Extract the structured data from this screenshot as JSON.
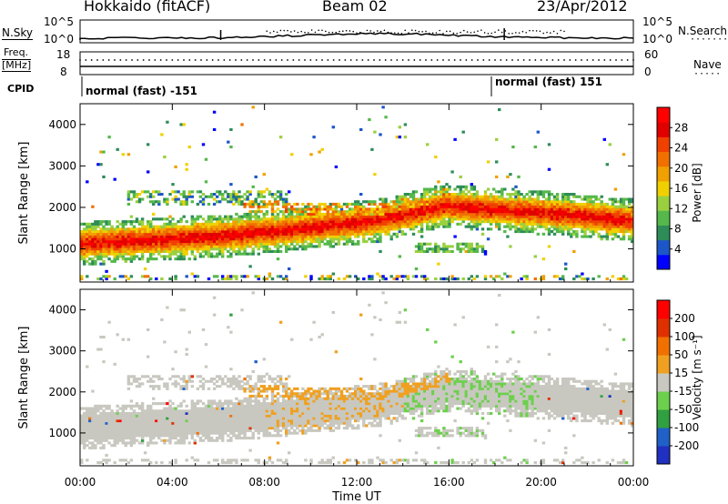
{
  "header": {
    "site": "Hokkaido (fitACF)",
    "beam": "Beam 02",
    "date": "23/Apr/2012"
  },
  "top_panels": {
    "nsky_label": "N.Sky",
    "nsky_ticks": [
      "10^5",
      "10^0"
    ],
    "nsearch_label": "N.Search",
    "nsearch_ticks": [
      "10^5",
      "10^0"
    ],
    "freq_label_1": "Freq.",
    "freq_label_2": "[MHz]",
    "freq_ticks": [
      "18",
      "8"
    ],
    "nave_label": "Nave",
    "nave_ticks": [
      "60",
      "0"
    ],
    "cpid_label": "CPID",
    "cpid_segments": [
      {
        "text": "normal (fast) -151",
        "start_hour": 0
      },
      {
        "text": "normal (fast) 151",
        "start_hour": 18
      }
    ]
  },
  "chart_data": [
    {
      "type": "heatmap",
      "title": "",
      "xlabel": "",
      "ylabel": "Slant Range [km]",
      "xlim": [
        0,
        24
      ],
      "ylim": [
        200,
        4500
      ],
      "yticks": [
        1000,
        2000,
        3000,
        4000
      ],
      "colorbar": {
        "label": "Power [dB]",
        "ticks": [
          "4",
          "8",
          "12",
          "16",
          "20",
          "24",
          "28"
        ],
        "colors": [
          "#0000ff",
          "#1c56c8",
          "#2e8c58",
          "#55b84a",
          "#9ad040",
          "#f0d000",
          "#f0a000",
          "#f07000",
          "#f04000",
          "#e00000",
          "#ff0000"
        ]
      }
    },
    {
      "type": "heatmap",
      "title": "",
      "xlabel": "Time UT",
      "ylabel": "Slant Range [km]",
      "xlim": [
        0,
        24
      ],
      "ylim": [
        200,
        4500
      ],
      "yticks": [
        1000,
        2000,
        3000,
        4000
      ],
      "xticks": [
        "00:00",
        "04:00",
        "08:00",
        "12:00",
        "16:00",
        "20:00",
        "00:00"
      ],
      "colorbar": {
        "label": "Velocity [m s⁻¹]",
        "ticks": [
          "200",
          "100",
          "50",
          "15",
          "-15",
          "-50",
          "-100",
          "-200"
        ],
        "colors": [
          "#2030c0",
          "#2060c8",
          "#30a040",
          "#6cd04c",
          "#c8c8c0",
          "#f0a020",
          "#f07000",
          "#e03000",
          "#ff0000"
        ]
      }
    }
  ]
}
